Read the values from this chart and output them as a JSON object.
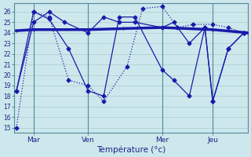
{
  "background_color": "#cce8ec",
  "grid_color": "#aacccc",
  "line_color": "#1a1aaa",
  "title": "Température (°c)",
  "xlim": [
    0,
    30
  ],
  "ylim": [
    14.5,
    26.8
  ],
  "yticks": [
    15,
    16,
    17,
    18,
    19,
    20,
    21,
    22,
    23,
    24,
    25,
    26
  ],
  "day_labels": [
    "Mar",
    "Ven",
    "Mer",
    "Jeu"
  ],
  "day_positions": [
    2.5,
    9.5,
    19.0,
    25.5
  ],
  "vline_positions": [
    2.5,
    9.5,
    19.0,
    25.5
  ],
  "series1_x": [
    0.3,
    2.5,
    9.5,
    14.0,
    19.0,
    25.5,
    30
  ],
  "series1_y": [
    24.2,
    24.3,
    24.3,
    24.4,
    24.5,
    24.3,
    24.0
  ],
  "series2_x": [
    0.3,
    2.5,
    4.5,
    7.0,
    9.5,
    11.5,
    14.5,
    16.5,
    19.0,
    21.0,
    23.0,
    25.5,
    27.5,
    29.5
  ],
  "series2_y": [
    15.0,
    26.0,
    25.5,
    19.5,
    19.0,
    17.5,
    20.8,
    26.3,
    26.5,
    24.5,
    24.8,
    24.8,
    24.5,
    24.0
  ],
  "series3_x": [
    0.3,
    2.5,
    4.5,
    7.0,
    9.5,
    11.5,
    13.5,
    15.5,
    19.0,
    20.5,
    22.5,
    24.5,
    25.5,
    27.5,
    29.5
  ],
  "series3_y": [
    18.5,
    26.0,
    25.3,
    22.5,
    18.5,
    18.0,
    25.5,
    25.5,
    20.5,
    19.5,
    18.0,
    24.5,
    17.5,
    22.5,
    24.0
  ],
  "series4_x": [
    0.3,
    2.5,
    4.5,
    6.5,
    9.5,
    11.5,
    13.5,
    15.5,
    19.0,
    20.5,
    22.5,
    24.5,
    25.5,
    27.5,
    29.5
  ],
  "series4_y": [
    18.5,
    25.0,
    26.0,
    25.0,
    24.0,
    25.5,
    25.0,
    25.0,
    24.5,
    25.0,
    23.0,
    24.5,
    17.5,
    22.5,
    24.0
  ]
}
